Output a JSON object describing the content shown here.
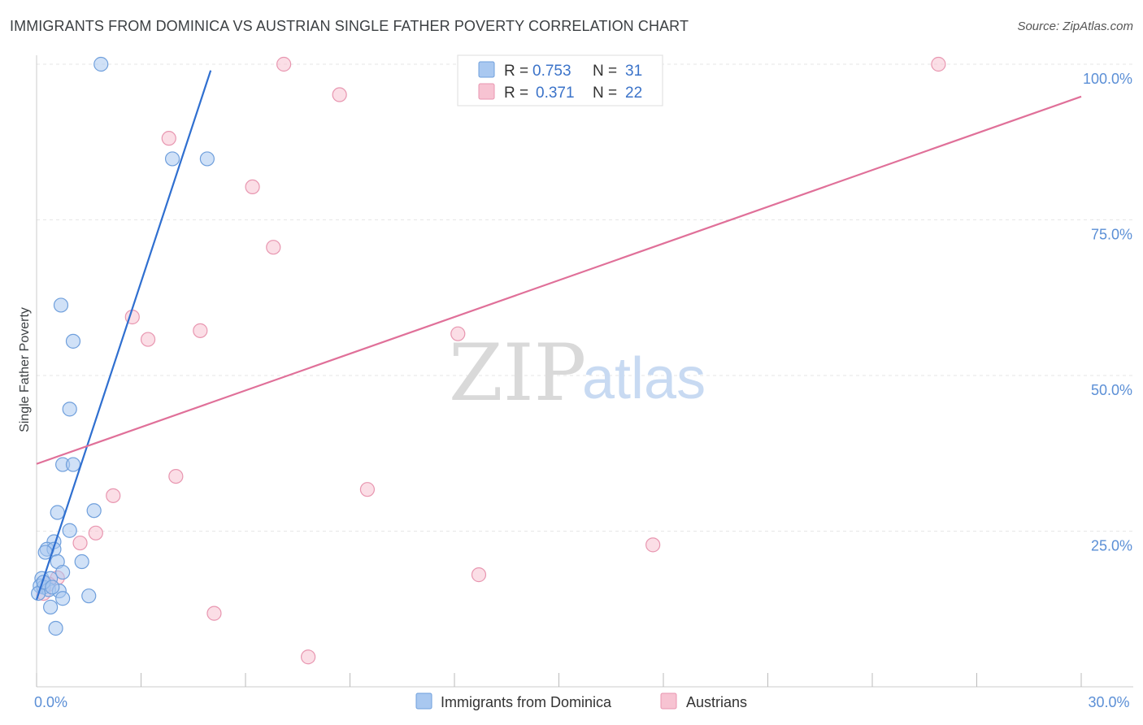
{
  "title": "IMMIGRANTS FROM DOMINICA VS AUSTRIAN SINGLE FATHER POVERTY CORRELATION CHART",
  "source": "Source: ZipAtlas.com",
  "watermark": {
    "part1": "ZIP",
    "part2": "atlas"
  },
  "colors": {
    "blue_fill": "#a9c8f0",
    "blue_stroke": "#6f9fdc",
    "blue_line": "#2f6fd0",
    "pink_fill": "#f7c3d2",
    "pink_stroke": "#e896b0",
    "pink_line": "#e07099",
    "tick_text": "#5b8fd6",
    "grid": "#e6e6e6"
  },
  "legend": {
    "rows": [
      {
        "r_label": "R =",
        "r_value": "0.753",
        "n_label": "N =",
        "n_value": "31",
        "series": "blue"
      },
      {
        "r_label": "R =",
        "r_value": "0.371",
        "n_label": "N =",
        "n_value": "22",
        "series": "pink"
      }
    ]
  },
  "chart_data": {
    "type": "scatter",
    "title": "IMMIGRANTS FROM DOMINICA VS AUSTRIAN SINGLE FATHER POVERTY CORRELATION CHART",
    "xlabel": "",
    "ylabel": "Single Father Poverty",
    "xlim": [
      0,
      30
    ],
    "ylim": [
      0,
      102
    ],
    "x_tick_labels": [
      {
        "value": 0,
        "label": "0.0%"
      },
      {
        "value": 30,
        "label": "30.0%"
      }
    ],
    "x_minor_ticks": [
      3,
      6,
      9,
      12,
      15,
      18,
      21,
      24,
      27
    ],
    "y_ticks": [
      {
        "value": 25,
        "label": "25.0%"
      },
      {
        "value": 50,
        "label": "50.0%"
      },
      {
        "value": 75,
        "label": "75.0%"
      },
      {
        "value": 100,
        "label": "100.0%"
      }
    ],
    "series": [
      {
        "name": "Immigrants from Dominica",
        "color": "blue",
        "R": 0.753,
        "N": 31,
        "points": [
          [
            1.85,
            100
          ],
          [
            3.9,
            84.8
          ],
          [
            4.9,
            84.8
          ],
          [
            0.7,
            61.3
          ],
          [
            1.05,
            55.5
          ],
          [
            0.95,
            44.6
          ],
          [
            0.75,
            35.7
          ],
          [
            1.05,
            35.7
          ],
          [
            0.6,
            28.0
          ],
          [
            1.65,
            28.3
          ],
          [
            0.95,
            25.1
          ],
          [
            0.5,
            23.3
          ],
          [
            0.3,
            22.1
          ],
          [
            0.5,
            22.1
          ],
          [
            0.25,
            21.6
          ],
          [
            0.6,
            20.1
          ],
          [
            1.3,
            20.1
          ],
          [
            0.75,
            18.4
          ],
          [
            0.15,
            17.4
          ],
          [
            0.4,
            17.4
          ],
          [
            0.1,
            16.2
          ],
          [
            0.2,
            16.0
          ],
          [
            0.35,
            15.6
          ],
          [
            0.65,
            15.4
          ],
          [
            0.05,
            15.0
          ],
          [
            0.75,
            14.2
          ],
          [
            1.5,
            14.6
          ],
          [
            0.4,
            12.8
          ],
          [
            0.55,
            9.4
          ],
          [
            0.2,
            16.8
          ],
          [
            0.45,
            16.0
          ]
        ],
        "trend": {
          "x0": 0.0,
          "y0": 14.0,
          "x1": 5.0,
          "y1": 99.0
        }
      },
      {
        "name": "Austrians",
        "color": "pink",
        "R": 0.371,
        "N": 22,
        "points": [
          [
            7.1,
            100
          ],
          [
            25.9,
            100
          ],
          [
            8.7,
            95.1
          ],
          [
            3.8,
            88.1
          ],
          [
            6.2,
            80.3
          ],
          [
            6.8,
            70.6
          ],
          [
            2.75,
            59.4
          ],
          [
            3.2,
            55.8
          ],
          [
            4.7,
            57.2
          ],
          [
            12.1,
            56.7
          ],
          [
            4.0,
            33.8
          ],
          [
            9.5,
            31.7
          ],
          [
            2.2,
            30.7
          ],
          [
            1.7,
            24.7
          ],
          [
            1.25,
            23.1
          ],
          [
            17.7,
            22.8
          ],
          [
            12.7,
            18.0
          ],
          [
            5.1,
            11.8
          ],
          [
            7.8,
            4.8
          ],
          [
            0.6,
            17.5
          ],
          [
            0.35,
            16.5
          ],
          [
            0.2,
            15.0
          ]
        ],
        "trend": {
          "x0": 0.0,
          "y0": 35.8,
          "x1": 30.0,
          "y1": 94.8
        }
      }
    ],
    "legend_position": "bottom-center"
  }
}
